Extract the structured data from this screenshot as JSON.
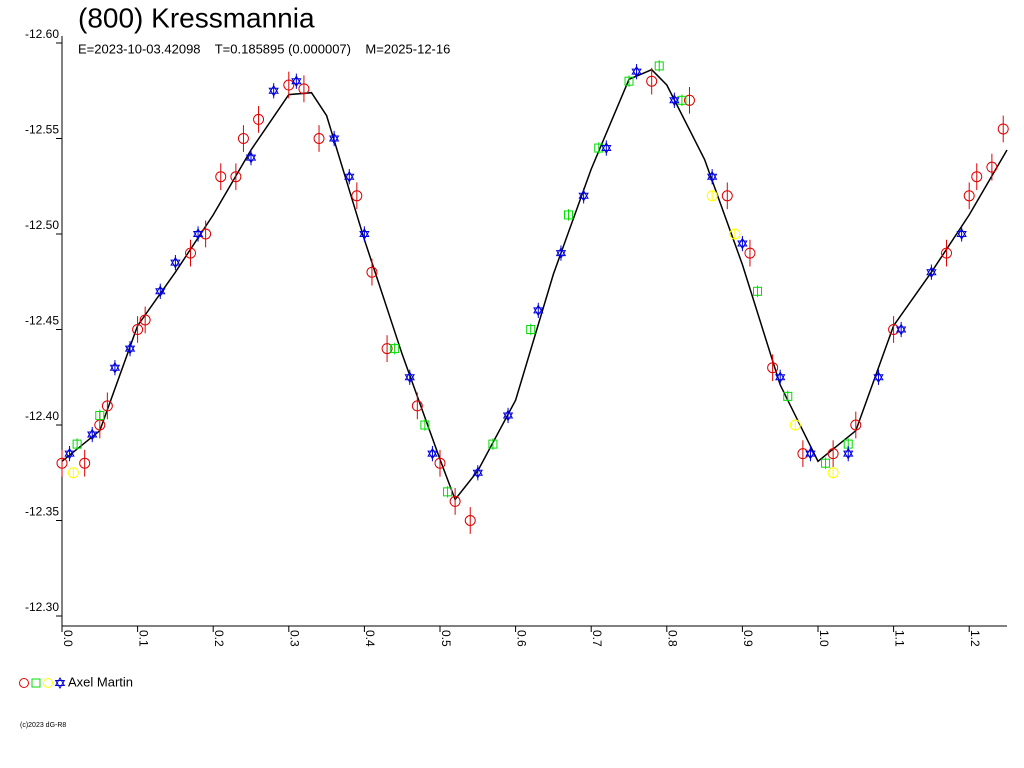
{
  "chart_data": {
    "type": "scatter",
    "title": "(800) Kressmannia",
    "subtitle": "E=2023-10-03.42098    T=0.185895 (0.000007)    M=2025-12-16",
    "footer": "(c)2023 dG-R8",
    "legend_label": "Axel Martin",
    "xlim": [
      0,
      1.25
    ],
    "ylim": [
      -12.6,
      -12.3
    ],
    "xticks": [
      {
        "value": 0,
        "label": "0.0"
      },
      0.1,
      0.2,
      0.3,
      0.4,
      0.5,
      0.6,
      0.7,
      0.8,
      0.9,
      {
        "value": 1,
        "label": "1.0"
      },
      1.1,
      1.2
    ],
    "yticks": [
      {
        "value": -12.6,
        "label": "-12.60"
      },
      -12.55,
      {
        "value": -12.5,
        "label": "-12.50"
      },
      -12.45,
      {
        "value": -12.4,
        "label": "-12.40"
      },
      -12.35,
      {
        "value": -12.3,
        "label": "-12.30"
      }
    ],
    "fit": {
      "color": "#000000",
      "x": [
        0,
        0.05,
        0.1,
        0.15,
        0.2,
        0.25,
        0.3,
        0.33,
        0.35,
        0.4,
        0.45,
        0.5,
        0.52,
        0.55,
        0.6,
        0.65,
        0.7,
        0.75,
        0.78,
        0.8,
        0.85,
        0.9,
        0.95,
        1,
        1.05,
        1.1,
        1.15,
        1.2,
        1.25
      ],
      "values": [
        -12.381,
        -12.397,
        -12.452,
        -12.48,
        -12.51,
        -12.544,
        -12.573,
        -12.574,
        -12.562,
        -12.497,
        -12.437,
        -12.382,
        -12.361,
        -12.376,
        -12.413,
        -12.479,
        -12.534,
        -12.581,
        -12.586,
        -12.578,
        -12.539,
        -12.484,
        -12.421,
        -12.381,
        -12.397,
        -12.452,
        -12.48,
        -12.51,
        -12.544
      ]
    },
    "series": [
      {
        "color": "#e00000",
        "marker": "circle",
        "x": [
          0,
          0.03,
          0.05,
          0.06,
          0.1,
          0.11,
          0.17,
          0.19,
          0.21,
          0.23,
          0.24,
          0.26,
          0.3,
          0.32,
          0.34,
          0.39,
          0.41,
          0.43,
          0.47,
          0.5,
          0.52,
          0.54,
          0.78,
          0.83,
          0.88,
          0.91,
          0.94,
          0.98,
          1.02,
          1.05,
          1.1,
          1.17,
          1.2,
          1.21,
          1.23,
          1.245
        ],
        "values": [
          -12.38,
          -12.38,
          -12.4,
          -12.41,
          -12.45,
          -12.455,
          -12.49,
          -12.5,
          -12.53,
          -12.53,
          -12.55,
          -12.56,
          -12.578,
          -12.576,
          -12.55,
          -12.52,
          -12.48,
          -12.44,
          -12.41,
          -12.38,
          -12.36,
          -12.35,
          -12.58,
          -12.57,
          -12.52,
          -12.49,
          -12.43,
          -12.385,
          -12.385,
          -12.4,
          -12.45,
          -12.49,
          -12.52,
          -12.53,
          -12.535,
          -12.555
        ],
        "errors": [
          0.007,
          0.007,
          0.007,
          0.007,
          0.007,
          0.007,
          0.007,
          0.007,
          0.007,
          0.007,
          0.007,
          0.007,
          0.007,
          0.007,
          0.007,
          0.007,
          0.007,
          0.007,
          0.007,
          0.007,
          0.007,
          0.007,
          0.007,
          0.007,
          0.007,
          0.007,
          0.007,
          0.007,
          0.007,
          0.007,
          0.007,
          0.007,
          0.007,
          0.007,
          0.007,
          0.007
        ]
      },
      {
        "color": "#00dd00",
        "marker": "square",
        "x": [
          0.02,
          0.05,
          0.44,
          0.48,
          0.51,
          0.57,
          0.62,
          0.67,
          0.71,
          0.75,
          0.79,
          0.82,
          0.92,
          0.96,
          1.01,
          1.04
        ],
        "values": [
          -12.39,
          -12.405,
          -12.44,
          -12.4,
          -12.365,
          -12.39,
          -12.45,
          -12.51,
          -12.545,
          -12.58,
          -12.588,
          -12.57,
          -12.47,
          -12.415,
          -12.38,
          -12.39
        ],
        "errors": [
          0.003,
          0.003,
          0.003,
          0.003,
          0.003,
          0.003,
          0.003,
          0.003,
          0.003,
          0.003,
          0.003,
          0.003,
          0.003,
          0.003,
          0.003,
          0.003
        ]
      },
      {
        "color": "#ffff00",
        "marker": "circle",
        "x": [
          0.015,
          0.86,
          0.89,
          0.97,
          1.02
        ],
        "values": [
          -12.375,
          -12.52,
          -12.5,
          -12.4,
          -12.375
        ],
        "errors": [
          0.003,
          0.003,
          0.003,
          0.003,
          0.003
        ]
      },
      {
        "color": "#0000dd",
        "marker": "star",
        "x": [
          0.01,
          0.04,
          0.07,
          0.09,
          0.13,
          0.15,
          0.18,
          0.25,
          0.28,
          0.31,
          0.36,
          0.38,
          0.4,
          0.46,
          0.49,
          0.55,
          0.59,
          0.63,
          0.66,
          0.69,
          0.72,
          0.76,
          0.81,
          0.86,
          0.9,
          0.95,
          0.99,
          1.04,
          1.08,
          1.11,
          1.15,
          1.19
        ],
        "values": [
          -12.385,
          -12.395,
          -12.43,
          -12.44,
          -12.47,
          -12.485,
          -12.5,
          -12.54,
          -12.575,
          -12.58,
          -12.55,
          -12.53,
          -12.5,
          -12.425,
          -12.385,
          -12.375,
          -12.405,
          -12.46,
          -12.49,
          -12.52,
          -12.545,
          -12.585,
          -12.57,
          -12.53,
          -12.495,
          -12.425,
          -12.385,
          -12.385,
          -12.425,
          -12.45,
          -12.48,
          -12.5
        ],
        "errors": [
          0.004,
          0.004,
          0.004,
          0.004,
          0.004,
          0.004,
          0.004,
          0.004,
          0.004,
          0.004,
          0.004,
          0.004,
          0.004,
          0.004,
          0.004,
          0.004,
          0.004,
          0.004,
          0.004,
          0.004,
          0.004,
          0.004,
          0.004,
          0.004,
          0.004,
          0.004,
          0.004,
          0.004,
          0.004,
          0.004,
          0.004,
          0.004
        ]
      }
    ]
  }
}
